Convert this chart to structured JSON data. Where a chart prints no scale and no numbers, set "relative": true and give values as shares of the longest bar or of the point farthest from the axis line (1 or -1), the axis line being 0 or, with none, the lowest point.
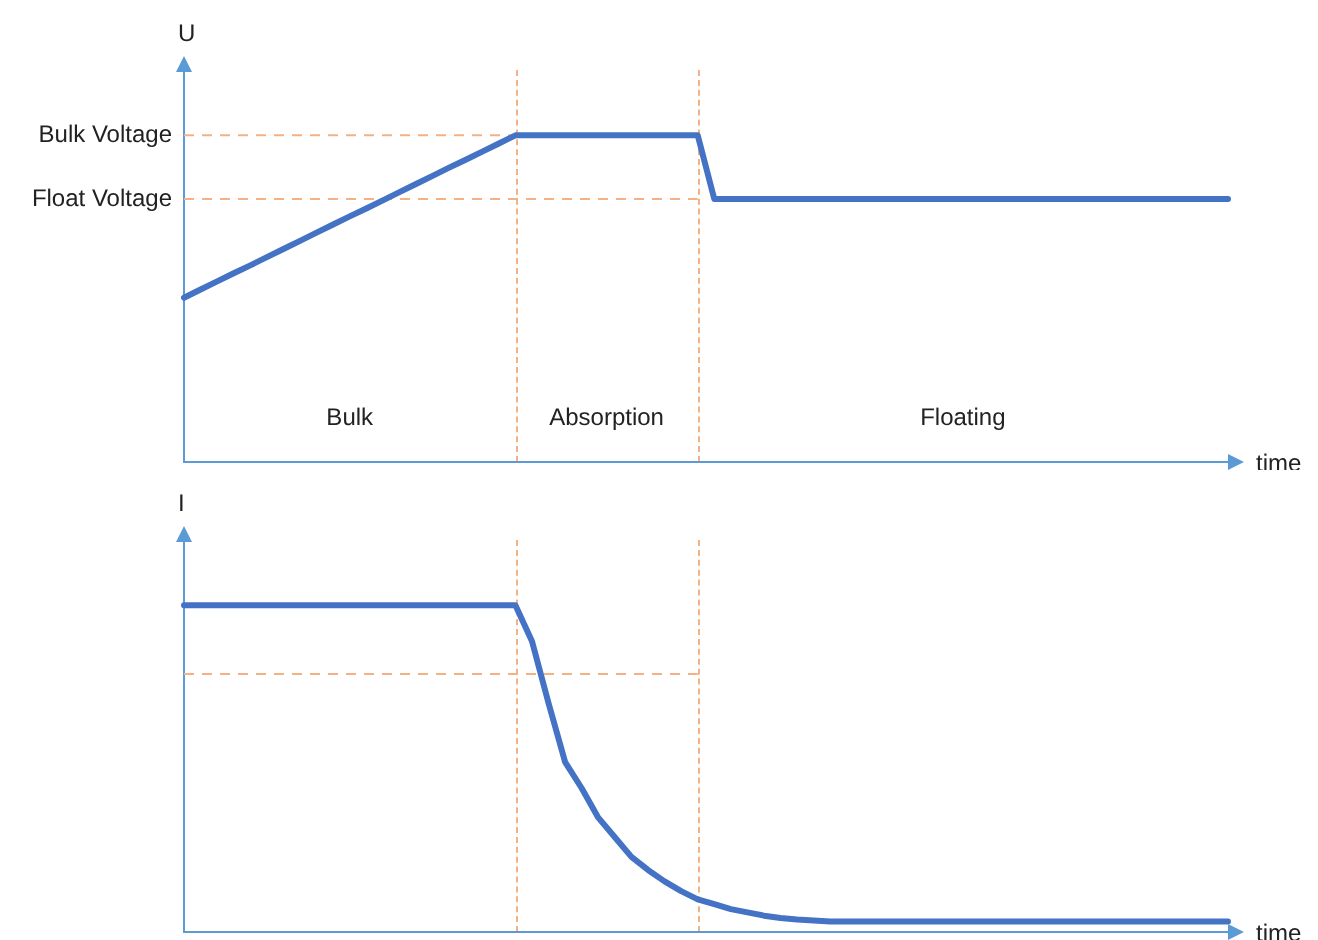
{
  "chart_data": [
    {
      "type": "line",
      "relative": true,
      "ylabel": "U",
      "xlabel": "time",
      "marker": "none",
      "color": "#4472c4",
      "categories": [
        null,
        null,
        null,
        null,
        null,
        null,
        null,
        null,
        null,
        null,
        null,
        null,
        null,
        null,
        null,
        null,
        null,
        null,
        null,
        null,
        null,
        null,
        null,
        null,
        null,
        null,
        null,
        null,
        null,
        null,
        null,
        null,
        null,
        null,
        null,
        null,
        null,
        null,
        null,
        null,
        null,
        null,
        null,
        null,
        null,
        null,
        null,
        null,
        null,
        null,
        null,
        null,
        null,
        null,
        null,
        null,
        null,
        null,
        null,
        null,
        null,
        null,
        null,
        null
      ],
      "values": [
        0.503,
        0.528,
        0.553,
        0.578,
        0.602,
        0.627,
        0.652,
        0.677,
        0.702,
        0.727,
        0.752,
        0.776,
        0.801,
        0.826,
        0.851,
        0.876,
        0.901,
        0.925,
        0.95,
        0.975,
        1,
        1,
        1,
        1,
        1,
        1,
        1,
        1,
        1,
        1,
        1,
        1,
        0.805,
        0.805,
        0.805,
        0.805,
        0.805,
        0.805,
        0.805,
        0.805,
        0.805,
        0.805,
        0.805,
        0.805,
        0.805,
        0.805,
        0.805,
        0.805,
        0.805,
        0.805,
        0.805,
        0.805,
        0.805,
        0.805,
        0.805,
        0.805,
        0.805,
        0.805,
        0.805,
        0.805,
        0.805,
        0.805,
        0.805,
        0.805
      ],
      "ref_lines": [
        {
          "axis": "y",
          "value": 1,
          "label": "Bulk Voltage",
          "color": "#f4b183",
          "line_style": "dashed"
        },
        {
          "axis": "y",
          "value": 0.805,
          "label": "Float Voltage",
          "color": "#f4b183",
          "line_style": "dashed"
        }
      ],
      "annotations": [
        "Bulk",
        "Absorption",
        "Floating"
      ]
    },
    {
      "type": "line",
      "relative": true,
      "ylabel": "I",
      "xlabel": "time",
      "marker": "none",
      "color": "#4472c4",
      "categories": [
        null,
        null,
        null,
        null,
        null,
        null,
        null,
        null,
        null,
        null,
        null,
        null,
        null,
        null,
        null,
        null,
        null,
        null,
        null,
        null,
        null,
        null,
        null,
        null,
        null,
        null,
        null,
        null,
        null,
        null,
        null,
        null,
        null,
        null,
        null,
        null,
        null,
        null,
        null,
        null,
        null,
        null,
        null,
        null,
        null,
        null,
        null,
        null,
        null,
        null,
        null,
        null,
        null,
        null,
        null,
        null,
        null,
        null,
        null,
        null,
        null,
        null,
        null,
        null
      ],
      "values": [
        1,
        1,
        1,
        1,
        1,
        1,
        1,
        1,
        1,
        1,
        1,
        1,
        1,
        1,
        1,
        1,
        1,
        1,
        1,
        1,
        1,
        0.89,
        0.7,
        0.52,
        0.44,
        0.35,
        0.29,
        0.23,
        0.19,
        0.155,
        0.125,
        0.1,
        0.085,
        0.07,
        0.06,
        0.05,
        0.043,
        0.038,
        0.035,
        0.032,
        0.032,
        0.032,
        0.032,
        0.032,
        0.032,
        0.032,
        0.032,
        0.032,
        0.032,
        0.032,
        0.032,
        0.032,
        0.032,
        0.032,
        0.032,
        0.032,
        0.032,
        0.032,
        0.032,
        0.032,
        0.032,
        0.032,
        0.032,
        0.032
      ],
      "ref_lines": [
        {
          "axis": "y",
          "value": 0.79,
          "color": "#f4b183",
          "line_style": "dashed"
        }
      ]
    }
  ]
}
